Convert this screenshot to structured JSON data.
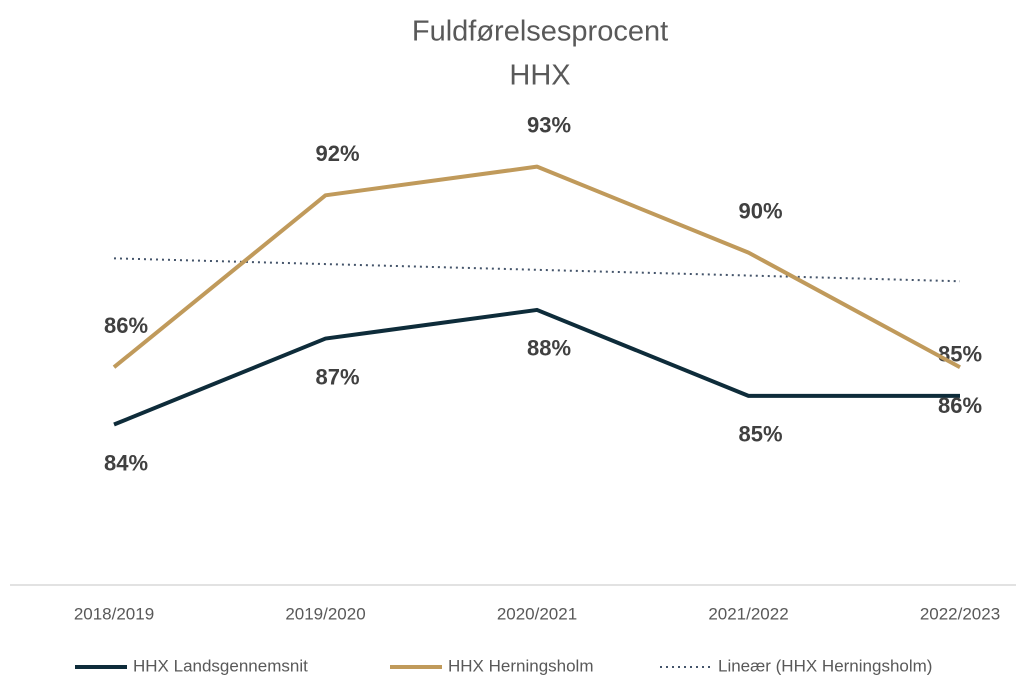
{
  "chart_data": {
    "type": "line",
    "title": "Fuldførelsesprocent",
    "subtitle": "HHX",
    "categories": [
      "2018/2019",
      "2019/2020",
      "2020/2021",
      "2021/2022",
      "2022/2023"
    ],
    "series": [
      {
        "name": "HHX Landsgennemsnit",
        "color": "#0e2c3a",
        "values": [
          84,
          87,
          88,
          85,
          85
        ],
        "value_labels": [
          "84%",
          "87%",
          "88%",
          "85%",
          "85%"
        ]
      },
      {
        "name": "HHX Herningsholm",
        "color": "#c09a5b",
        "values": [
          86,
          92,
          93,
          90,
          86
        ],
        "value_labels": [
          "86%",
          "92%",
          "93%",
          "90%",
          "86%"
        ]
      }
    ],
    "trendline": {
      "name": "Lineær (HHX Herningsholm)",
      "series": 1,
      "color": "#44546a"
    },
    "ylim": [
      78.4,
      94
    ],
    "legend": "bottom"
  }
}
